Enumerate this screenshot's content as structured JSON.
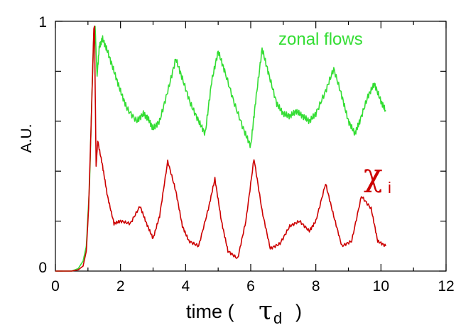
{
  "chart_data": {
    "type": "line",
    "xlabel_prefix": "time (",
    "xlabel_symbol": "τ",
    "xlabel_subscript": "d",
    "xlabel_suffix": ")",
    "ylabel": "A.U.",
    "xlim": [
      0,
      12
    ],
    "ylim": [
      0,
      1
    ],
    "x_ticks": [
      0,
      2,
      4,
      6,
      8,
      10,
      12
    ],
    "y_tick_labels": [
      {
        "value": 0,
        "label": "0"
      },
      {
        "value": 1,
        "label": "1"
      }
    ],
    "y_minor_ticks": [
      0.2,
      0.4,
      0.6,
      0.8
    ],
    "grid": false,
    "series": [
      {
        "name": "zonal flows",
        "color": "#33dd33",
        "points": [
          [
            0,
            0.0
          ],
          [
            0.5,
            0.0
          ],
          [
            0.7,
            0.01
          ],
          [
            0.85,
            0.04
          ],
          [
            0.95,
            0.1
          ],
          [
            1.05,
            0.35
          ],
          [
            1.12,
            0.7
          ],
          [
            1.18,
            0.95
          ],
          [
            1.22,
            0.98
          ],
          [
            1.28,
            0.78
          ],
          [
            1.35,
            0.9
          ],
          [
            1.45,
            0.93
          ],
          [
            1.6,
            0.88
          ],
          [
            1.8,
            0.8
          ],
          [
            2.0,
            0.72
          ],
          [
            2.2,
            0.65
          ],
          [
            2.5,
            0.6
          ],
          [
            2.7,
            0.63
          ],
          [
            2.85,
            0.61
          ],
          [
            3.0,
            0.57
          ],
          [
            3.2,
            0.6
          ],
          [
            3.45,
            0.72
          ],
          [
            3.7,
            0.85
          ],
          [
            3.9,
            0.77
          ],
          [
            4.15,
            0.67
          ],
          [
            4.4,
            0.6
          ],
          [
            4.6,
            0.55
          ],
          [
            4.8,
            0.76
          ],
          [
            5.0,
            0.88
          ],
          [
            5.2,
            0.8
          ],
          [
            5.5,
            0.67
          ],
          [
            5.8,
            0.56
          ],
          [
            6.0,
            0.5
          ],
          [
            6.15,
            0.68
          ],
          [
            6.35,
            0.89
          ],
          [
            6.55,
            0.79
          ],
          [
            6.8,
            0.67
          ],
          [
            7.0,
            0.63
          ],
          [
            7.2,
            0.62
          ],
          [
            7.4,
            0.64
          ],
          [
            7.6,
            0.62
          ],
          [
            7.8,
            0.6
          ],
          [
            8.0,
            0.63
          ],
          [
            8.3,
            0.72
          ],
          [
            8.55,
            0.81
          ],
          [
            8.8,
            0.7
          ],
          [
            9.0,
            0.6
          ],
          [
            9.2,
            0.55
          ],
          [
            9.35,
            0.6
          ],
          [
            9.6,
            0.7
          ],
          [
            9.8,
            0.75
          ],
          [
            10.0,
            0.68
          ],
          [
            10.15,
            0.64
          ]
        ]
      },
      {
        "name": "χ",
        "label_subscript": "i",
        "color": "#cc0000",
        "points": [
          [
            0,
            0.0
          ],
          [
            0.5,
            0.0
          ],
          [
            0.7,
            0.005
          ],
          [
            0.85,
            0.02
          ],
          [
            0.95,
            0.08
          ],
          [
            1.02,
            0.25
          ],
          [
            1.1,
            0.6
          ],
          [
            1.18,
            0.97
          ],
          [
            1.2,
            0.98
          ],
          [
            1.25,
            0.42
          ],
          [
            1.3,
            0.52
          ],
          [
            1.45,
            0.42
          ],
          [
            1.6,
            0.3
          ],
          [
            1.8,
            0.19
          ],
          [
            2.0,
            0.2
          ],
          [
            2.3,
            0.19
          ],
          [
            2.6,
            0.26
          ],
          [
            2.8,
            0.19
          ],
          [
            3.0,
            0.13
          ],
          [
            3.2,
            0.22
          ],
          [
            3.45,
            0.44
          ],
          [
            3.7,
            0.32
          ],
          [
            3.9,
            0.18
          ],
          [
            4.1,
            0.12
          ],
          [
            4.4,
            0.1
          ],
          [
            4.7,
            0.25
          ],
          [
            4.9,
            0.37
          ],
          [
            5.1,
            0.2
          ],
          [
            5.3,
            0.08
          ],
          [
            5.6,
            0.05
          ],
          [
            5.85,
            0.2
          ],
          [
            6.1,
            0.45
          ],
          [
            6.35,
            0.24
          ],
          [
            6.6,
            0.09
          ],
          [
            6.9,
            0.11
          ],
          [
            7.2,
            0.18
          ],
          [
            7.5,
            0.2
          ],
          [
            7.8,
            0.16
          ],
          [
            8.0,
            0.2
          ],
          [
            8.3,
            0.35
          ],
          [
            8.55,
            0.22
          ],
          [
            8.8,
            0.1
          ],
          [
            9.1,
            0.12
          ],
          [
            9.4,
            0.3
          ],
          [
            9.7,
            0.25
          ],
          [
            9.9,
            0.12
          ],
          [
            10.15,
            0.1
          ]
        ]
      }
    ]
  }
}
